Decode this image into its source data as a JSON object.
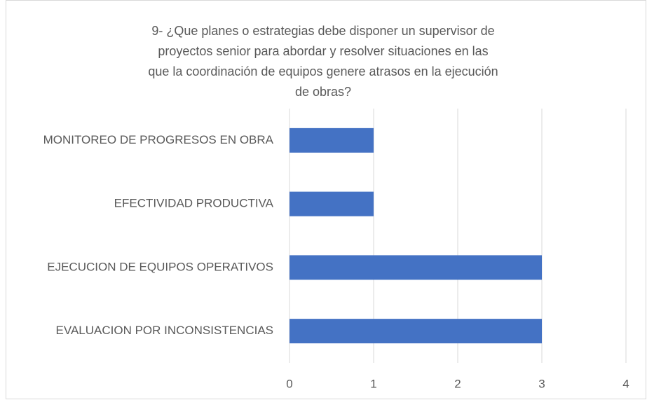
{
  "chart_data": {
    "type": "bar",
    "orientation": "horizontal",
    "title": "9- ¿Que planes o estrategias debe disponer un supervisor de proyectos senior para abordar y resolver situaciones en las que la coordinación de equipos genere atrasos en la ejecución de obras?",
    "categories": [
      "MONITOREO DE PROGRESOS EN OBRA",
      "EFECTIVIDAD PRODUCTIVA",
      "EJECUCION DE EQUIPOS OPERATIVOS",
      "EVALUACION POR INCONSISTENCIAS"
    ],
    "values": [
      1,
      1,
      3,
      3
    ],
    "color": "#4472c4",
    "xlim": [
      0,
      4
    ],
    "xticks": [
      0,
      1,
      2,
      3,
      4
    ],
    "grid": true
  }
}
